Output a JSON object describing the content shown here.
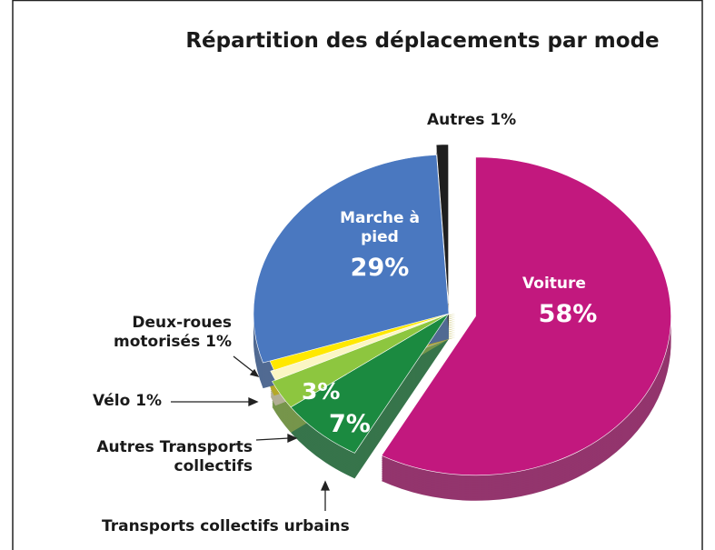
{
  "chart_data": {
    "type": "pie",
    "title": "Répartition des déplacements par mode",
    "categories": [
      "Voiture",
      "Transports collectifs urbains",
      "Autres Transports collectifs",
      "Vélo",
      "Deux-roues motorisés",
      "Marche à pied",
      "Autres"
    ],
    "values": [
      58,
      7,
      3,
      1,
      1,
      29,
      1
    ],
    "value_labels": [
      "58%",
      "7%",
      "3%",
      "1%",
      "1%",
      "29%",
      "1%"
    ],
    "colors": [
      "#c2187e",
      "#1b8a40",
      "#8dc63f",
      "#fbf6c4",
      "#ffe800",
      "#4a78c0",
      "#1e1e1e"
    ]
  }
}
